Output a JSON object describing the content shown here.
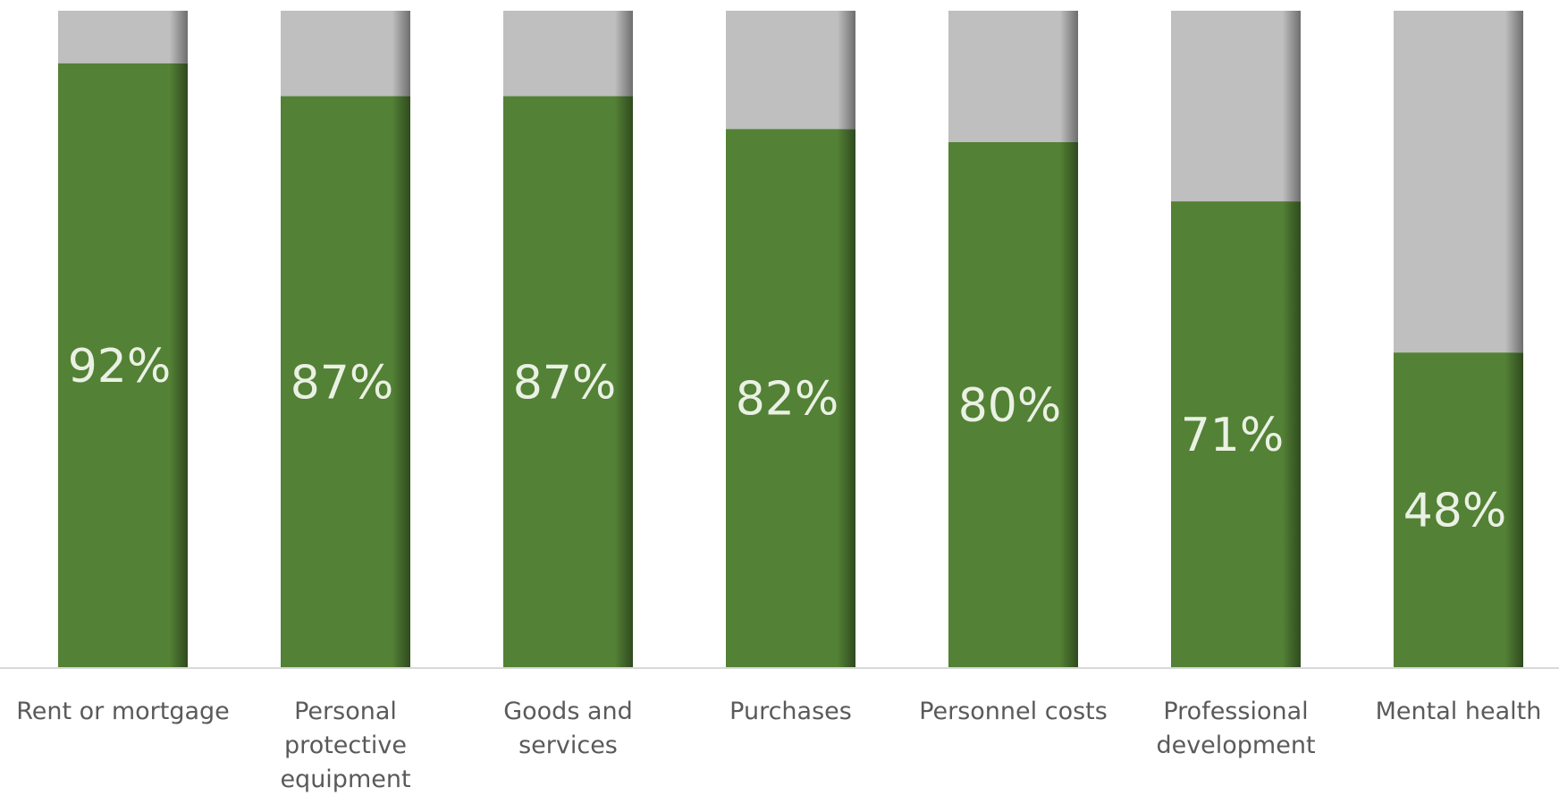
{
  "chart_data": {
    "type": "bar",
    "stacked": true,
    "categories": [
      "Rent or mortgage",
      "Personal protective equipment",
      "Goods and services",
      "Purchases",
      "Personnel costs",
      "Professional development",
      "Mental health"
    ],
    "category_label_lines": [
      [
        "Rent or mortgage"
      ],
      [
        "Personal",
        "protective",
        "equipment"
      ],
      [
        "Goods and",
        "services"
      ],
      [
        "Purchases"
      ],
      [
        "Personnel costs"
      ],
      [
        "Professional",
        "development"
      ],
      [
        "Mental health"
      ]
    ],
    "values": [
      92,
      87,
      87,
      82,
      80,
      71,
      48
    ],
    "labels": [
      "92%",
      "87%",
      "87%",
      "82%",
      "80%",
      "71%",
      "48%"
    ],
    "ylim": [
      0,
      100
    ],
    "grid": false,
    "legend": "none",
    "colors": {
      "filled": "#538135",
      "remainder": "#bfbfbf",
      "axis": "#d9d9d9",
      "label_text": "#eaf1e4",
      "category_text": "#5a5a5a"
    }
  }
}
